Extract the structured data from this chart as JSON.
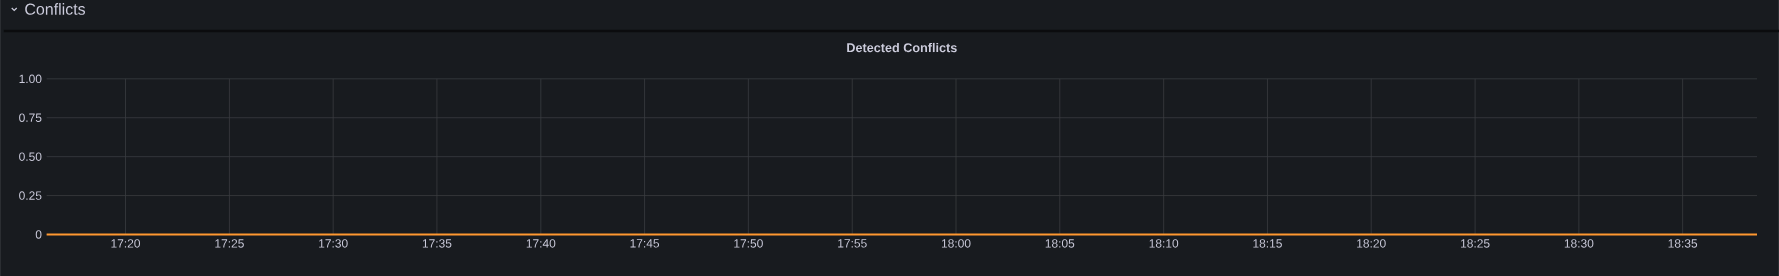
{
  "chart_data": {
    "type": "line",
    "title": "Detected Conflicts",
    "annotations": [
      "Conflicts"
    ],
    "x": [
      17.27,
      18.643
    ],
    "series": [
      {
        "color": "#ff9830",
        "values": [
          0,
          0
        ]
      }
    ],
    "xlim": [
      17.27,
      18.643
    ],
    "xticks": [
      {
        "value": 17.3333,
        "label": "17:20"
      },
      {
        "value": 17.4167,
        "label": "17:25"
      },
      {
        "value": 17.5,
        "label": "17:30"
      },
      {
        "value": 17.5833,
        "label": "17:35"
      },
      {
        "value": 17.6667,
        "label": "17:40"
      },
      {
        "value": 17.75,
        "label": "17:45"
      },
      {
        "value": 17.8333,
        "label": "17:50"
      },
      {
        "value": 17.9167,
        "label": "17:55"
      },
      {
        "value": 18.0,
        "label": "18:00"
      },
      {
        "value": 18.0833,
        "label": "18:05"
      },
      {
        "value": 18.1667,
        "label": "18:10"
      },
      {
        "value": 18.25,
        "label": "18:15"
      },
      {
        "value": 18.3333,
        "label": "18:20"
      },
      {
        "value": 18.4167,
        "label": "18:25"
      },
      {
        "value": 18.5,
        "label": "18:30"
      },
      {
        "value": 18.5833,
        "label": "18:35"
      }
    ],
    "ylim": [
      0,
      1
    ],
    "yticks": [
      0,
      {
        "value": 0.25,
        "label": "0.25"
      },
      {
        "value": 0.5,
        "label": "0.50"
      },
      {
        "value": 0.75,
        "label": "0.75"
      },
      {
        "value": 1,
        "label": "1.00"
      }
    ],
    "grid": true
  }
}
